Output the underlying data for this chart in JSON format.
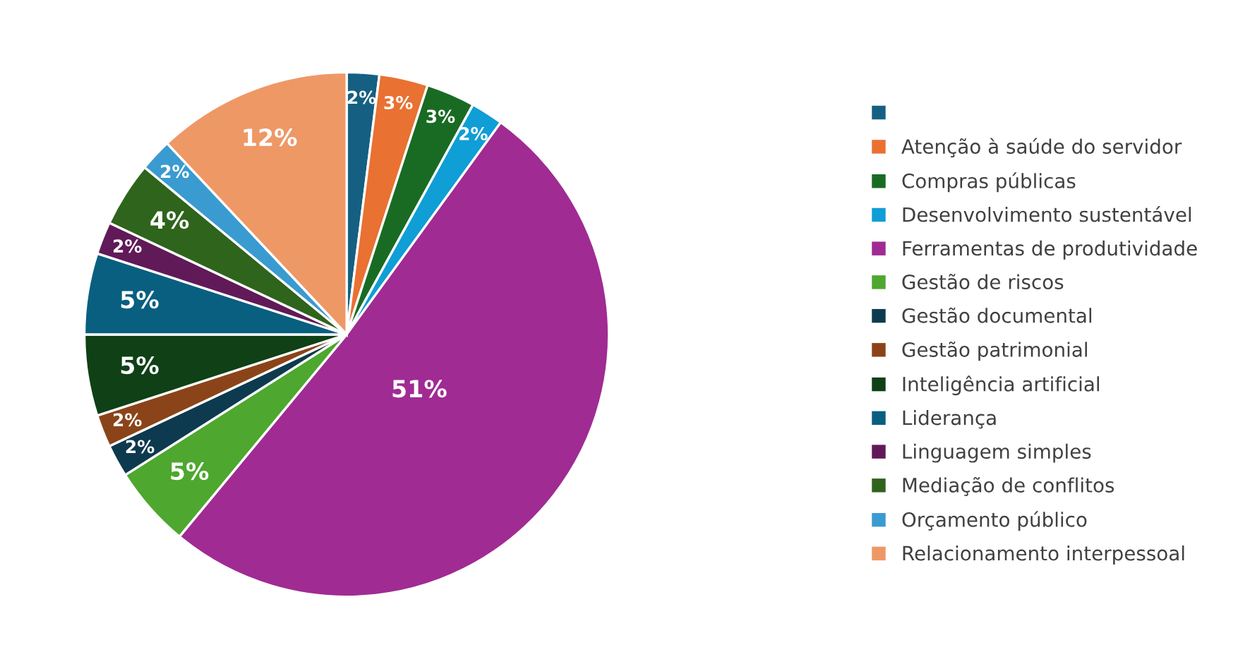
{
  "chart_data": {
    "type": "pie",
    "categories": [
      null,
      "Atenção à saúde do servidor",
      "Compras públicas",
      "Desenvolvimento sustentável",
      "Ferramentas de produtividade",
      "Gestão de riscos",
      "Gestão documental",
      "Gestão patrimonial",
      "Inteligência artificial",
      "Liderança",
      "Linguagem simples",
      "Mediação de conflitos",
      "Orçamento público",
      "Relacionamento interpessoal"
    ],
    "values": [
      2,
      3,
      3,
      2,
      51,
      5,
      2,
      2,
      5,
      5,
      2,
      4,
      2,
      12
    ],
    "colors": [
      "#156082",
      "#e97132",
      "#196b24",
      "#0f9ed5",
      "#a02b93",
      "#4ea72e",
      "#0d3a4e",
      "#8b4419",
      "#0f4016",
      "#095f80",
      "#601a58",
      "#2f641c",
      "#3a9bd0",
      "#ee9866"
    ],
    "value_labels": [
      "2%",
      "3%",
      "3%",
      "2%",
      "51%",
      "5%",
      "2%",
      "2%",
      "5%",
      "5%",
      "2%",
      "4%",
      "2%",
      "12%"
    ],
    "legend": "right"
  }
}
